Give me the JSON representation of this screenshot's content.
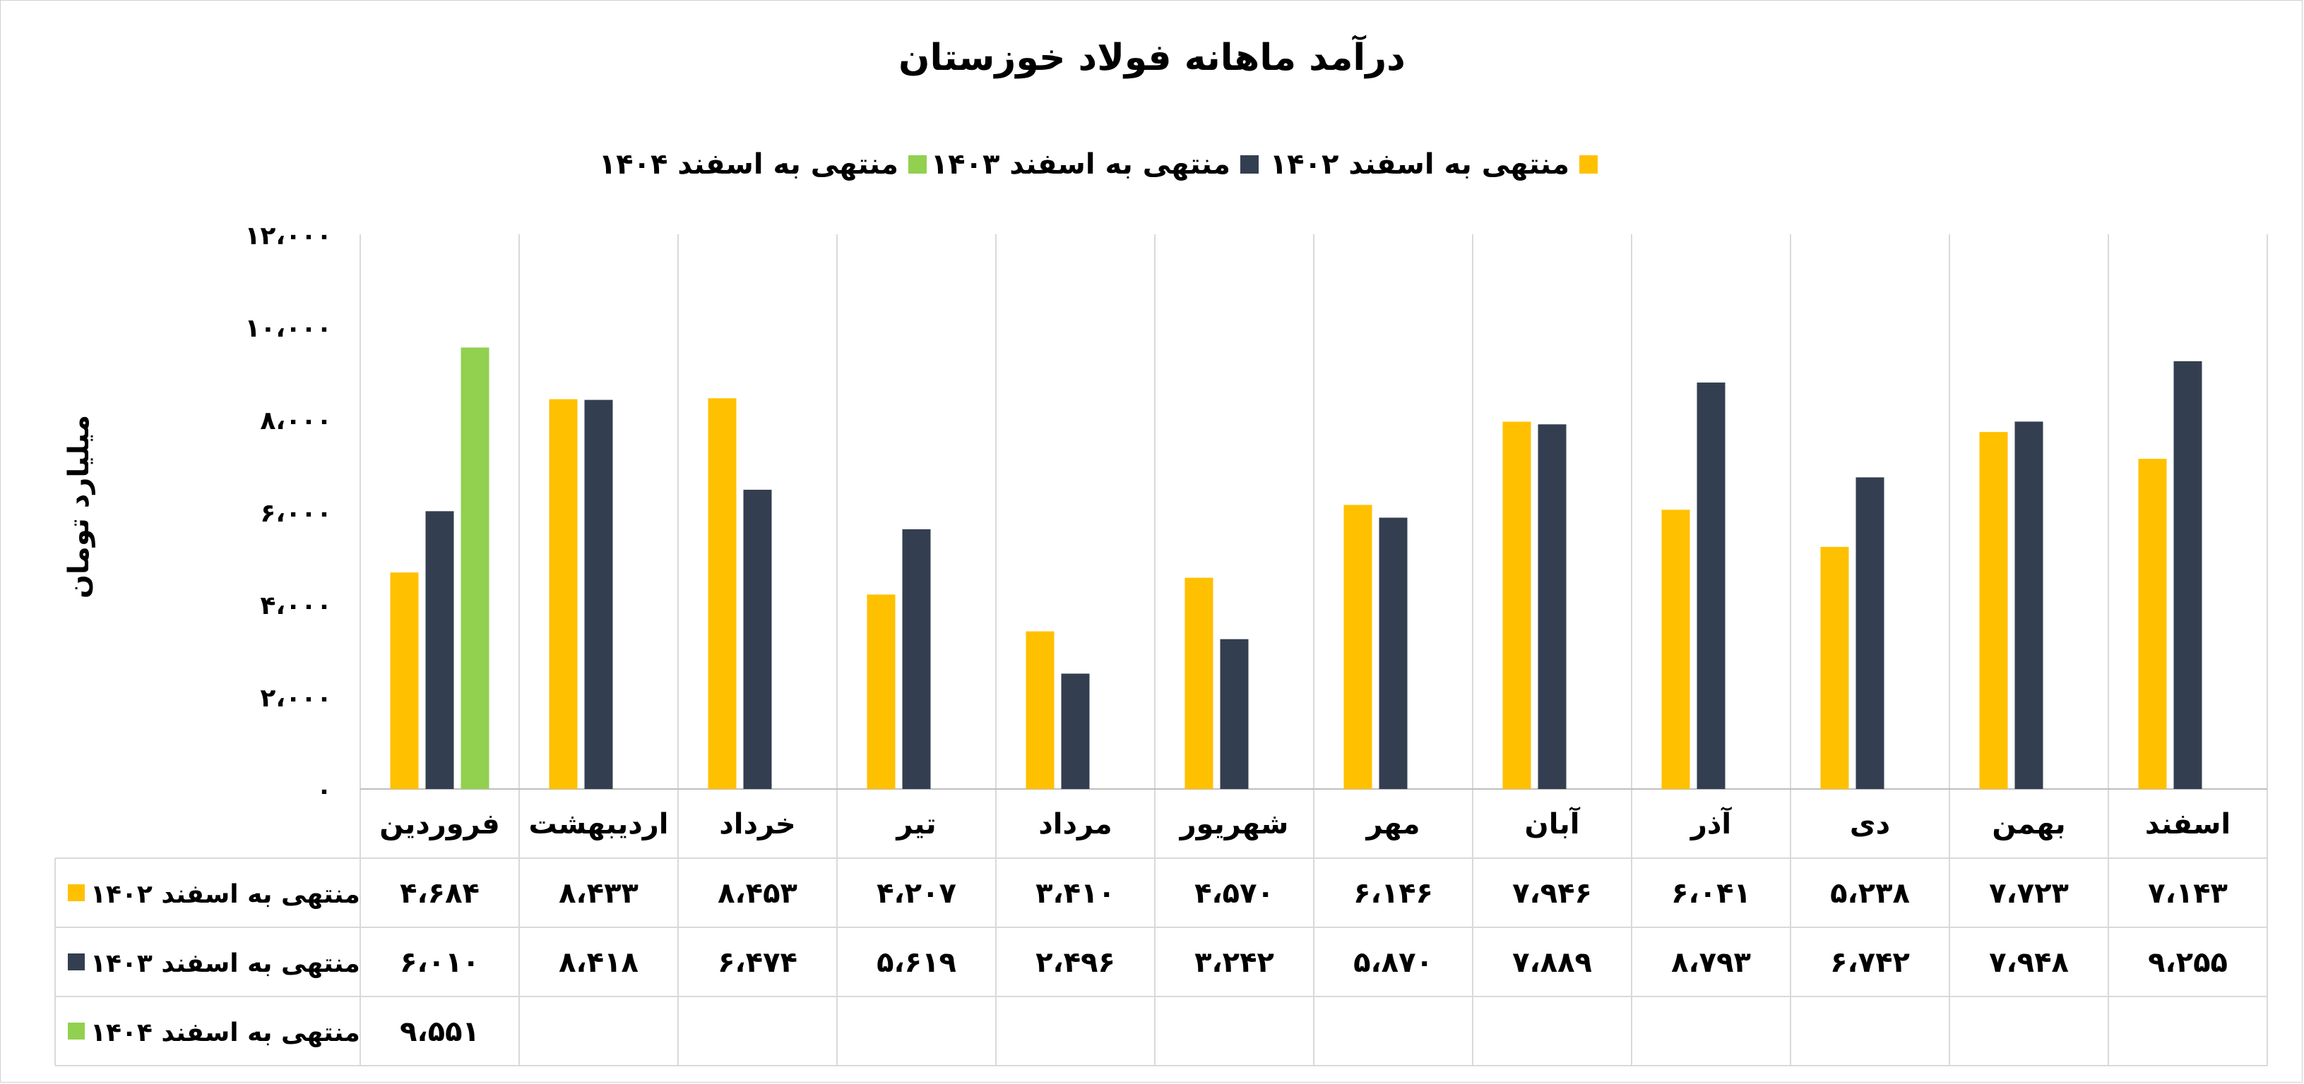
{
  "chart_data": {
    "type": "bar",
    "title": "درآمد ماهانه فولاد خوزستان",
    "ylabel": "میلیارد تومان",
    "xlabel": "",
    "ylim": [
      0,
      12000
    ],
    "yticks": [
      0,
      2000,
      4000,
      6000,
      8000,
      10000,
      12000
    ],
    "ytick_labels": [
      "۰",
      "۲،۰۰۰",
      "۴،۰۰۰",
      "۶،۰۰۰",
      "۸،۰۰۰",
      "۱۰،۰۰۰",
      "۱۲،۰۰۰"
    ],
    "grid": true,
    "legend_position": "top",
    "categories": [
      "فروردین",
      "اردیبهشت",
      "خرداد",
      "تیر",
      "مرداد",
      "شهریور",
      "مهر",
      "آبان",
      "آذر",
      "دی",
      "بهمن",
      "اسفند"
    ],
    "series": [
      {
        "name": "منتهی به اسفند ۱۴۰۲",
        "color": "#FFC000",
        "values": [
          4684,
          8433,
          8453,
          4207,
          3410,
          4570,
          6146,
          7946,
          6041,
          5238,
          7723,
          7143
        ],
        "labels": [
          "۴،۶۸۴",
          "۸،۴۳۳",
          "۸،۴۵۳",
          "۴،۲۰۷",
          "۳،۴۱۰",
          "۴،۵۷۰",
          "۶،۱۴۶",
          "۷،۹۴۶",
          "۶،۰۴۱",
          "۵،۲۳۸",
          "۷،۷۲۳",
          "۷،۱۴۳"
        ]
      },
      {
        "name": "منتهی به اسفند ۱۴۰۳",
        "color": "#333F50",
        "values": [
          6010,
          8418,
          6474,
          5619,
          2496,
          3242,
          5870,
          7889,
          8793,
          6742,
          7948,
          9255
        ],
        "labels": [
          "۶،۰۱۰",
          "۸،۴۱۸",
          "۶،۴۷۴",
          "۵،۶۱۹",
          "۲،۴۹۶",
          "۳،۲۴۲",
          "۵،۸۷۰",
          "۷،۸۸۹",
          "۸،۷۹۳",
          "۶،۷۴۲",
          "۷،۹۴۸",
          "۹،۲۵۵"
        ]
      },
      {
        "name": "منتهی به اسفند ۱۴۰۴",
        "color": "#92D050",
        "values": [
          9551,
          null,
          null,
          null,
          null,
          null,
          null,
          null,
          null,
          null,
          null,
          null
        ],
        "labels": [
          "۹،۵۵۱",
          "",
          "",
          "",
          "",
          "",
          "",
          "",
          "",
          "",
          "",
          ""
        ]
      }
    ]
  }
}
